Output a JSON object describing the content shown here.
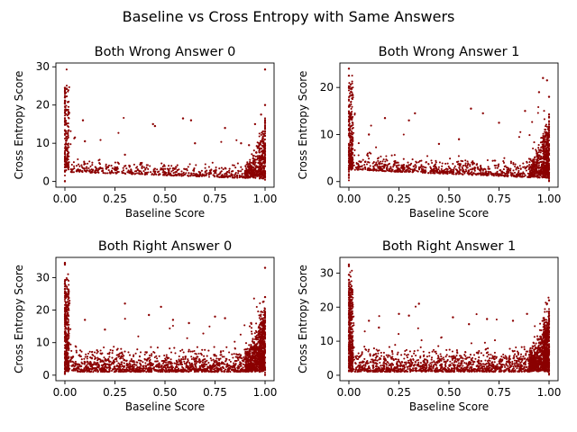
{
  "figure": {
    "suptitle": "Baseline vs Cross Entropy with Same Answers",
    "point_color": "#8b0000"
  },
  "chart_data": [
    {
      "type": "scatter",
      "title": "Both Wrong Answer 0",
      "xlabel": "Baseline Score",
      "ylabel": "Cross Entropy Score",
      "xlim": [
        -0.045,
        1.045
      ],
      "ylim": [
        -1.5,
        31
      ],
      "xticks": [
        0.0,
        0.25,
        0.5,
        0.75,
        1.0
      ],
      "xtick_labels": [
        "0.00",
        "0.25",
        "0.50",
        "0.75",
        "1.00"
      ],
      "yticks": [
        0,
        10,
        20,
        30
      ],
      "ytick_labels": [
        "0",
        "10",
        "20",
        "30"
      ],
      "density": "sparse",
      "max_y": 29.3,
      "outliers": [
        [
          0.0,
          24.5
        ],
        [
          0.0,
          22.0
        ],
        [
          0.0,
          20.5
        ],
        [
          0.09,
          16.0
        ],
        [
          0.44,
          15.0
        ],
        [
          0.45,
          14.5
        ],
        [
          0.59,
          16.5
        ],
        [
          0.63,
          16.0
        ],
        [
          0.8,
          14.0
        ],
        [
          0.95,
          15.0
        ],
        [
          0.98,
          17.5
        ],
        [
          1.0,
          29.3
        ],
        [
          1.0,
          20.0
        ],
        [
          0.05,
          11.5
        ],
        [
          0.1,
          10.5
        ],
        [
          0.3,
          7.0
        ],
        [
          0.65,
          10.0
        ],
        [
          0.88,
          10.0
        ],
        [
          0.92,
          9.5
        ]
      ]
    },
    {
      "type": "scatter",
      "title": "Both Wrong Answer 1",
      "xlabel": "Baseline Score",
      "ylabel": "Cross Entropy Score",
      "xlim": [
        -0.045,
        1.045
      ],
      "ylim": [
        -1.2,
        25.2
      ],
      "xticks": [
        0.0,
        0.25,
        0.5,
        0.75,
        1.0
      ],
      "xtick_labels": [
        "0.00",
        "0.25",
        "0.50",
        "0.75",
        "1.00"
      ],
      "yticks": [
        0,
        10,
        20
      ],
      "ytick_labels": [
        "0",
        "10",
        "20"
      ],
      "density": "medium",
      "max_y": 24.0,
      "outliers": [
        [
          0.0,
          24.0
        ],
        [
          0.0,
          22.5
        ],
        [
          0.0,
          20.0
        ],
        [
          0.18,
          13.5
        ],
        [
          0.33,
          14.5
        ],
        [
          0.3,
          13.0
        ],
        [
          0.61,
          15.5
        ],
        [
          0.67,
          14.5
        ],
        [
          0.75,
          12.5
        ],
        [
          0.88,
          15.0
        ],
        [
          0.97,
          22.0
        ],
        [
          0.99,
          21.5
        ],
        [
          0.95,
          19.0
        ],
        [
          1.0,
          18.0
        ],
        [
          0.1,
          10.0
        ],
        [
          0.45,
          8.0
        ],
        [
          0.55,
          9.0
        ]
      ]
    },
    {
      "type": "scatter",
      "title": "Both Right Answer 0",
      "xlabel": "Baseline Score",
      "ylabel": "Cross Entropy Score",
      "xlim": [
        -0.045,
        1.045
      ],
      "ylim": [
        -1.7,
        36.2
      ],
      "xticks": [
        0.0,
        0.25,
        0.5,
        0.75,
        1.0
      ],
      "xtick_labels": [
        "0.00",
        "0.25",
        "0.50",
        "0.75",
        "1.00"
      ],
      "yticks": [
        0,
        10,
        20,
        30
      ],
      "ytick_labels": [
        "0",
        "10",
        "20",
        "30"
      ],
      "density": "dense",
      "max_y": 34.5,
      "outliers": [
        [
          0.0,
          34.5
        ],
        [
          0.0,
          34.0
        ],
        [
          0.0,
          28.0
        ],
        [
          0.0,
          26.5
        ],
        [
          0.3,
          22.0
        ],
        [
          0.48,
          21.0
        ],
        [
          0.42,
          18.5
        ],
        [
          0.54,
          17.0
        ],
        [
          0.75,
          18.0
        ],
        [
          0.8,
          17.5
        ],
        [
          0.93,
          16.0
        ],
        [
          1.0,
          33.0
        ],
        [
          1.0,
          24.0
        ],
        [
          0.99,
          22.5
        ],
        [
          0.1,
          17.0
        ],
        [
          0.2,
          14.0
        ],
        [
          0.62,
          16.0
        ]
      ]
    },
    {
      "type": "scatter",
      "title": "Both Right Answer 1",
      "xlabel": "Baseline Score",
      "ylabel": "Cross Entropy Score",
      "xlim": [
        -0.045,
        1.045
      ],
      "ylim": [
        -1.6,
        34.6
      ],
      "xticks": [
        0.0,
        0.25,
        0.5,
        0.75,
        1.0
      ],
      "xtick_labels": [
        "0.00",
        "0.25",
        "0.50",
        "0.75",
        "1.00"
      ],
      "yticks": [
        0,
        10,
        20,
        30
      ],
      "ytick_labels": [
        "0",
        "10",
        "20",
        "30"
      ],
      "density": "dense",
      "max_y": 32.5,
      "outliers": [
        [
          0.0,
          32.5
        ],
        [
          0.0,
          32.0
        ],
        [
          0.0,
          29.5
        ],
        [
          0.0,
          28.0
        ],
        [
          0.35,
          21.0
        ],
        [
          0.25,
          18.0
        ],
        [
          0.3,
          17.5
        ],
        [
          0.52,
          17.0
        ],
        [
          0.69,
          16.5
        ],
        [
          0.82,
          16.0
        ],
        [
          0.89,
          18.0
        ],
        [
          1.0,
          22.0
        ],
        [
          0.99,
          21.0
        ],
        [
          0.1,
          16.0
        ],
        [
          0.15,
          14.0
        ],
        [
          0.6,
          15.0
        ]
      ]
    }
  ]
}
